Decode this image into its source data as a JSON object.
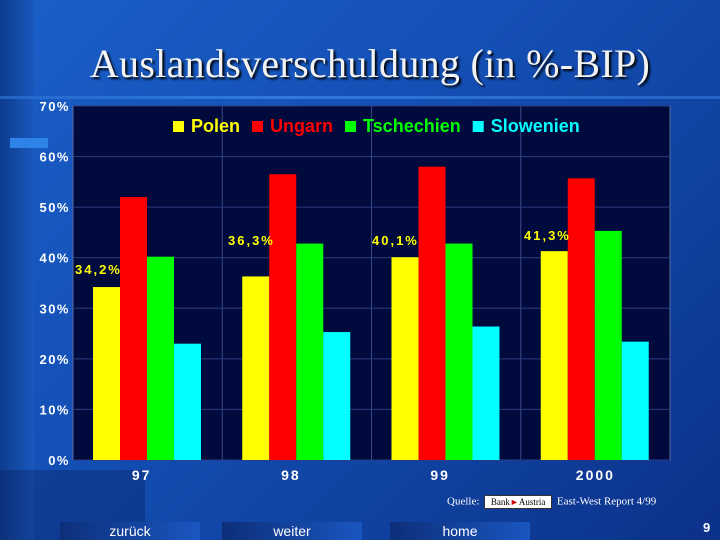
{
  "title": "Auslandsverschuldung (in %-BIP)",
  "chart_data": {
    "type": "bar",
    "categories": [
      "97",
      "98",
      "99",
      "2000"
    ],
    "series": [
      {
        "name": "Polen",
        "color": "#ffff00",
        "values": [
          34.2,
          36.3,
          40.1,
          41.3
        ]
      },
      {
        "name": "Ungarn",
        "color": "#ff0000",
        "values": [
          52,
          56.5,
          58,
          55.7
        ]
      },
      {
        "name": "Tschechien",
        "color": "#00ff00",
        "values": [
          40.2,
          42.8,
          42.8,
          45.3
        ]
      },
      {
        "name": "Slowenien",
        "color": "#00ffff",
        "values": [
          23,
          25.3,
          26.4,
          23.4
        ]
      }
    ],
    "data_labels": [
      "34,2%",
      "36,3%",
      "40,1%",
      "41,3%"
    ],
    "yticks": [
      "0%",
      "10%",
      "20%",
      "30%",
      "40%",
      "50%",
      "60%",
      "70%"
    ],
    "ylim": [
      0,
      70
    ],
    "xlabel": "",
    "ylabel": "",
    "legend_position": "top"
  },
  "source": {
    "prefix": "Quelle:",
    "logo_left": "Bank",
    "logo_right": "Austria",
    "suffix": "East-West Report 4/99"
  },
  "nav": {
    "back": "zurück",
    "next": "weiter",
    "home": "home"
  },
  "page_number": "9",
  "colors": {
    "plot_background": "#000a3c",
    "axis_text": "#ffffff",
    "legend_text_ungarn": "#ff0000",
    "legend_text_slowenien": "#00ffff"
  }
}
